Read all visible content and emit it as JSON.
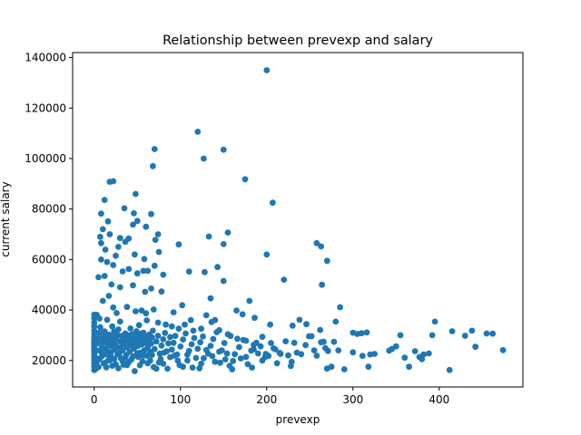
{
  "chart_data": {
    "type": "scatter",
    "title": "Relationship between prevexp and salary",
    "xlabel": "prevexp",
    "ylabel": "current salary",
    "xlim": [
      -25,
      497
    ],
    "ylim": [
      9500,
      142000
    ],
    "xticks": [
      0,
      100,
      200,
      300,
      400
    ],
    "yticks": [
      20000,
      40000,
      60000,
      80000,
      100000,
      120000,
      140000
    ],
    "ytick_labels": [
      "20000",
      "40000",
      "60000",
      "80000",
      "100000",
      "120000",
      "140000"
    ],
    "grid": false,
    "color": "#1f77b4",
    "points": [
      [
        200,
        135000
      ],
      [
        120,
        110600
      ],
      [
        70,
        103750
      ],
      [
        150,
        103500
      ],
      [
        127,
        100000
      ],
      [
        68,
        97000
      ],
      [
        175,
        91800
      ],
      [
        18,
        90800
      ],
      [
        22,
        91000
      ],
      [
        48,
        86000
      ],
      [
        207,
        82500
      ],
      [
        12,
        83600
      ],
      [
        8,
        78200
      ],
      [
        35,
        80300
      ],
      [
        46,
        78300
      ],
      [
        66,
        78000
      ],
      [
        16,
        75100
      ],
      [
        45,
        73800
      ],
      [
        60,
        73000
      ],
      [
        10,
        72000
      ],
      [
        50,
        75300
      ],
      [
        74,
        70000
      ],
      [
        133,
        69100
      ],
      [
        155,
        70700
      ],
      [
        7,
        69000
      ],
      [
        18,
        70000
      ],
      [
        30,
        68500
      ],
      [
        36,
        67000
      ],
      [
        40,
        68300
      ],
      [
        71,
        67800
      ],
      [
        98,
        66000
      ],
      [
        150,
        66100
      ],
      [
        200,
        62000
      ],
      [
        258,
        66500
      ],
      [
        263,
        65200
      ],
      [
        8,
        66500
      ],
      [
        28,
        65000
      ],
      [
        13,
        63900
      ],
      [
        47,
        62000
      ],
      [
        58,
        60200
      ],
      [
        75,
        63000
      ],
      [
        270,
        59500
      ],
      [
        8,
        60000
      ],
      [
        15,
        59000
      ],
      [
        25,
        61500
      ],
      [
        22,
        57800
      ],
      [
        33,
        55300
      ],
      [
        40,
        56200
      ],
      [
        50,
        54500
      ],
      [
        57,
        55500
      ],
      [
        62,
        55500
      ],
      [
        70,
        57500
      ],
      [
        80,
        54000
      ],
      [
        110,
        55200
      ],
      [
        128,
        55000
      ],
      [
        143,
        57000
      ],
      [
        150,
        51500
      ],
      [
        220,
        52000
      ],
      [
        264,
        50000
      ],
      [
        5,
        53000
      ],
      [
        12,
        53500
      ],
      [
        20,
        50100
      ],
      [
        30,
        49000
      ],
      [
        45,
        49800
      ],
      [
        59,
        47200
      ],
      [
        66,
        48500
      ],
      [
        78,
        47300
      ],
      [
        102,
        41900
      ],
      [
        135,
        44600
      ],
      [
        180,
        43600
      ],
      [
        285,
        41100
      ],
      [
        10,
        43600
      ],
      [
        17,
        45600
      ],
      [
        22,
        41000
      ],
      [
        26,
        38800
      ],
      [
        38,
        41200
      ],
      [
        48,
        39500
      ],
      [
        55,
        39800
      ],
      [
        60,
        38700
      ],
      [
        69,
        40200
      ],
      [
        92,
        39100
      ],
      [
        112,
        36000
      ],
      [
        130,
        37900
      ],
      [
        140,
        36000
      ],
      [
        165,
        39800
      ],
      [
        172,
        38300
      ],
      [
        186,
        36900
      ],
      [
        204,
        34200
      ],
      [
        230,
        33800
      ],
      [
        238,
        36100
      ],
      [
        246,
        34400
      ],
      [
        262,
        32100
      ],
      [
        280,
        35400
      ],
      [
        3,
        38100
      ],
      [
        6,
        36600
      ],
      [
        15,
        36100
      ],
      [
        21,
        33500
      ],
      [
        30,
        35400
      ],
      [
        42,
        32700
      ],
      [
        52,
        34000
      ],
      [
        61,
        35900
      ],
      [
        74,
        35000
      ],
      [
        83,
        34200
      ],
      [
        90,
        33500
      ],
      [
        98,
        32600
      ],
      [
        105,
        34200
      ],
      [
        115,
        31800
      ],
      [
        124,
        32600
      ],
      [
        136,
        35200
      ],
      [
        145,
        32000
      ],
      [
        155,
        30400
      ],
      [
        166,
        28600
      ],
      [
        176,
        27800
      ],
      [
        185,
        26200
      ],
      [
        193,
        25600
      ],
      [
        208,
        24800
      ],
      [
        215,
        23000
      ],
      [
        225,
        22000
      ],
      [
        240,
        22500
      ],
      [
        255,
        24000
      ],
      [
        263,
        27200
      ],
      [
        271,
        23800
      ],
      [
        275,
        17500
      ],
      [
        283,
        24000
      ],
      [
        290,
        16500
      ],
      [
        300,
        31000
      ],
      [
        305,
        30500
      ],
      [
        310,
        30800
      ],
      [
        316,
        31100
      ],
      [
        320,
        22400
      ],
      [
        325,
        22600
      ],
      [
        345,
        24500
      ],
      [
        350,
        25600
      ],
      [
        355,
        30000
      ],
      [
        365,
        17500
      ],
      [
        372,
        23700
      ],
      [
        377,
        21400
      ],
      [
        382,
        22400
      ],
      [
        388,
        22800
      ],
      [
        392,
        30000
      ],
      [
        395,
        35400
      ],
      [
        412,
        16200
      ],
      [
        415,
        31600
      ],
      [
        430,
        29800
      ],
      [
        438,
        31800
      ],
      [
        442,
        25400
      ],
      [
        455,
        30700
      ],
      [
        462,
        30600
      ],
      [
        474,
        24100
      ],
      [
        380,
        20500
      ],
      [
        360,
        21100
      ],
      [
        342,
        23900
      ],
      [
        318,
        17500
      ],
      [
        311,
        21800
      ],
      [
        300,
        23200
      ],
      [
        270,
        16800
      ],
      [
        266,
        27400
      ],
      [
        249,
        29600
      ],
      [
        232,
        27000
      ],
      [
        229,
        19500
      ],
      [
        216,
        22600
      ],
      [
        198,
        21300
      ],
      [
        190,
        22800
      ],
      [
        178,
        18500
      ],
      [
        170,
        20800
      ],
      [
        160,
        16500
      ],
      [
        152,
        20400
      ],
      [
        145,
        23500
      ],
      [
        130,
        24200
      ],
      [
        122,
        16900
      ],
      [
        114,
        17200
      ],
      [
        108,
        20000
      ],
      [
        97,
        19900
      ],
      [
        88,
        21300
      ],
      [
        80,
        18700
      ],
      [
        72,
        16700
      ],
      [
        65,
        20000
      ],
      [
        56,
        19700
      ],
      [
        47,
        15800
      ],
      [
        40,
        19300
      ],
      [
        33,
        19700
      ],
      [
        25,
        18500
      ],
      [
        18,
        20100
      ],
      [
        12,
        19000
      ],
      [
        5,
        17400
      ],
      [
        0,
        16200
      ],
      [
        0,
        17600
      ],
      [
        0,
        19000
      ],
      [
        0,
        20200
      ],
      [
        0,
        21400
      ],
      [
        0,
        22600
      ],
      [
        0,
        23600
      ],
      [
        0,
        24600
      ],
      [
        0,
        25600
      ],
      [
        0,
        26400
      ],
      [
        0,
        27200
      ],
      [
        0,
        28000
      ],
      [
        0,
        29000
      ],
      [
        0,
        30500
      ],
      [
        0,
        31800
      ],
      [
        0,
        33500
      ],
      [
        0,
        35000
      ],
      [
        0,
        36800
      ],
      [
        0,
        38200
      ],
      [
        2,
        21000
      ],
      [
        3,
        24000
      ],
      [
        4,
        26800
      ],
      [
        5,
        28800
      ],
      [
        6,
        31000
      ],
      [
        7,
        33200
      ],
      [
        8,
        23500
      ],
      [
        9,
        25200
      ],
      [
        10,
        27300
      ],
      [
        11,
        29400
      ],
      [
        12,
        31500
      ],
      [
        13,
        22500
      ],
      [
        14,
        24500
      ],
      [
        15,
        26600
      ],
      [
        16,
        28400
      ],
      [
        17,
        30200
      ],
      [
        18,
        21500
      ],
      [
        19,
        23300
      ],
      [
        20,
        25700
      ],
      [
        21,
        27600
      ],
      [
        22,
        29500
      ],
      [
        23,
        31400
      ],
      [
        24,
        24200
      ],
      [
        25,
        26100
      ],
      [
        26,
        28300
      ],
      [
        27,
        30100
      ],
      [
        28,
        32300
      ],
      [
        29,
        22800
      ],
      [
        30,
        25000
      ],
      [
        31,
        27400
      ],
      [
        32,
        29700
      ],
      [
        33,
        24000
      ],
      [
        34,
        26500
      ],
      [
        35,
        28600
      ],
      [
        36,
        30700
      ],
      [
        37,
        22100
      ],
      [
        38,
        25300
      ],
      [
        39,
        27700
      ],
      [
        40,
        29900
      ],
      [
        41,
        23500
      ],
      [
        42,
        26000
      ],
      [
        43,
        28200
      ],
      [
        44,
        30400
      ],
      [
        45,
        21600
      ],
      [
        46,
        24700
      ],
      [
        47,
        27000
      ],
      [
        48,
        29300
      ],
      [
        49,
        31600
      ],
      [
        50,
        22900
      ],
      [
        51,
        25800
      ],
      [
        52,
        28100
      ],
      [
        53,
        30500
      ],
      [
        54,
        23100
      ],
      [
        55,
        26300
      ],
      [
        56,
        28800
      ],
      [
        57,
        31000
      ],
      [
        58,
        24000
      ],
      [
        59,
        27100
      ],
      [
        60,
        29600
      ],
      [
        61,
        21900
      ],
      [
        62,
        25200
      ],
      [
        63,
        27900
      ],
      [
        64,
        30300
      ],
      [
        65,
        23400
      ],
      [
        66,
        26700
      ],
      [
        67,
        29100
      ],
      [
        68,
        31800
      ],
      [
        70,
        24500
      ],
      [
        72,
        27500
      ],
      [
        74,
        29800
      ],
      [
        76,
        22700
      ],
      [
        78,
        25900
      ],
      [
        80,
        28400
      ],
      [
        82,
        30900
      ],
      [
        84,
        23600
      ],
      [
        86,
        26800
      ],
      [
        88,
        29300
      ],
      [
        90,
        24300
      ],
      [
        92,
        27000
      ],
      [
        94,
        29700
      ],
      [
        96,
        22400
      ],
      [
        100,
        25500
      ],
      [
        103,
        28300
      ],
      [
        106,
        30700
      ],
      [
        110,
        23800
      ],
      [
        113,
        26400
      ],
      [
        116,
        28900
      ],
      [
        120,
        24600
      ],
      [
        123,
        27200
      ],
      [
        126,
        29500
      ],
      [
        132,
        22700
      ],
      [
        135,
        25800
      ],
      [
        138,
        28500
      ],
      [
        142,
        31200
      ],
      [
        148,
        24000
      ],
      [
        151,
        26900
      ],
      [
        158,
        29700
      ],
      [
        163,
        22500
      ],
      [
        168,
        25300
      ],
      [
        173,
        28100
      ],
      [
        182,
        23900
      ],
      [
        188,
        27000
      ],
      [
        195,
        29400
      ],
      [
        202,
        21800
      ],
      [
        210,
        24400
      ],
      [
        222,
        27600
      ],
      [
        235,
        23100
      ],
      [
        245,
        26100
      ],
      [
        252,
        29600
      ],
      [
        258,
        21900
      ],
      [
        268,
        24900
      ],
      [
        278,
        27400
      ],
      [
        228,
        17800
      ],
      [
        212,
        18900
      ],
      [
        195,
        20000
      ],
      [
        183,
        17200
      ],
      [
        157,
        17900
      ],
      [
        140,
        19500
      ],
      [
        127,
        20900
      ],
      [
        103,
        17500
      ],
      [
        85,
        16700
      ],
      [
        75,
        19200
      ],
      [
        38,
        18200
      ],
      [
        28,
        16900
      ],
      [
        14,
        17300
      ],
      [
        2,
        16700
      ],
      [
        1,
        18300
      ],
      [
        3,
        19400
      ],
      [
        6,
        20500
      ],
      [
        9,
        21700
      ],
      [
        11,
        18800
      ],
      [
        16,
        19900
      ],
      [
        19,
        22100
      ],
      [
        21,
        17900
      ],
      [
        23,
        20600
      ],
      [
        27,
        22300
      ],
      [
        31,
        20800
      ],
      [
        34,
        18300
      ],
      [
        36,
        21200
      ],
      [
        43,
        20300
      ],
      [
        51,
        21400
      ],
      [
        53,
        18100
      ],
      [
        57,
        22000
      ],
      [
        62,
        18900
      ],
      [
        67,
        22200
      ],
      [
        69,
        17400
      ],
      [
        77,
        20600
      ],
      [
        81,
        23100
      ],
      [
        93,
        21900
      ],
      [
        99,
        18200
      ],
      [
        108,
        22300
      ],
      [
        118,
        21000
      ],
      [
        124,
        18700
      ],
      [
        137,
        21700
      ],
      [
        146,
        19100
      ],
      [
        154,
        22700
      ],
      [
        161,
        19800
      ],
      [
        176,
        21400
      ],
      [
        185,
        24400
      ],
      [
        199,
        22600
      ],
      [
        205,
        26900
      ]
    ]
  }
}
